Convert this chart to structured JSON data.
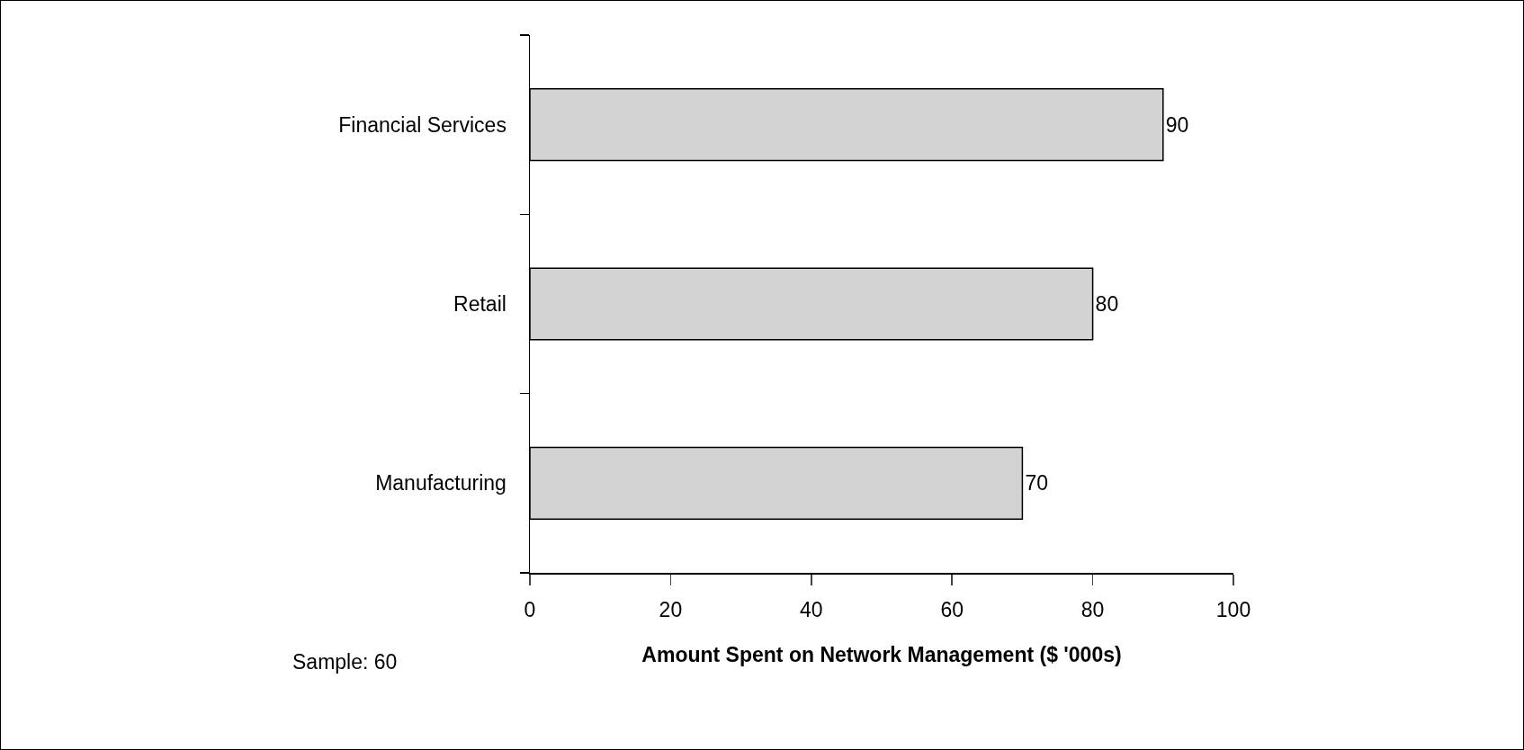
{
  "chart_data": {
    "type": "bar",
    "orientation": "horizontal",
    "categories": [
      "Financial Services",
      "Retail",
      "Manufacturing"
    ],
    "values": [
      90,
      80,
      70
    ],
    "color": "#d3d3d3",
    "xlabel": "Amount Spent on Network Management ($ '000s)",
    "xlim": [
      0,
      100
    ],
    "xticks": [
      0,
      20,
      40,
      60,
      80,
      100
    ],
    "data_labels": true,
    "grid": false,
    "legend": false,
    "annotations": [
      "Sample: 60"
    ]
  }
}
